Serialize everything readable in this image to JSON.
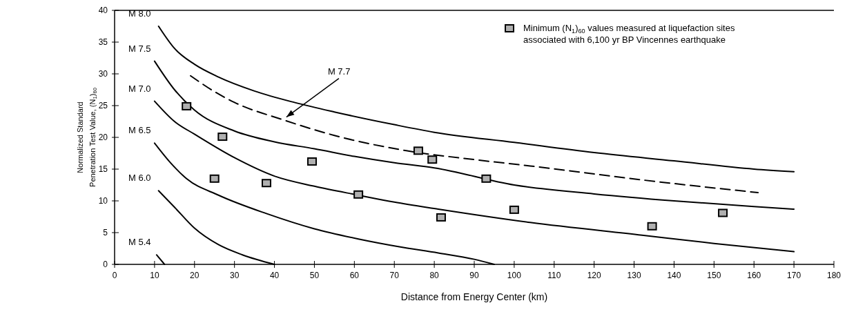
{
  "chart_data": {
    "type": "line",
    "xlabel": "Distance from Energy Center (km)",
    "ylabel": "Normalized Standard Penetration Test Value, (N$_{1}$)$_{60}$",
    "xlim": [
      0,
      180
    ],
    "xticks": [
      0,
      10,
      20,
      30,
      40,
      50,
      60,
      70,
      80,
      90,
      100,
      110,
      120,
      130,
      140,
      150,
      160,
      170,
      180
    ],
    "ylim": [
      0,
      40
    ],
    "yticks": [
      0,
      5,
      10,
      15,
      20,
      25,
      30,
      35,
      40
    ],
    "grid": false,
    "legend": "top right",
    "annotations": [
      {
        "text": "M 7.7",
        "x": 43,
        "y": 23.2
      }
    ],
    "series": [
      {
        "name": "M 8.0",
        "color": "#000000",
        "line_style": "solid",
        "x": [
          11,
          15,
          20,
          26,
          35,
          45,
          55,
          70,
          80,
          100,
          120,
          140,
          160,
          170
        ],
        "values": [
          37.5,
          34,
          31.5,
          29.5,
          27.3,
          25.5,
          24,
          22,
          20.8,
          19.2,
          17.6,
          16.3,
          15,
          14.6
        ]
      },
      {
        "name": "M 7.5",
        "color": "#000000",
        "line_style": "solid",
        "x": [
          10,
          15,
          20,
          30,
          40,
          50,
          60,
          70,
          80,
          100,
          120,
          140,
          160,
          170
        ],
        "values": [
          32,
          27.5,
          24.3,
          21,
          19.3,
          18.2,
          17,
          16,
          15.2,
          12.5,
          11.1,
          10,
          9.1,
          8.7
        ]
      },
      {
        "color": "#000000",
        "line_style": "dashed",
        "x": [
          19,
          25,
          30,
          42,
          55,
          73,
          90,
          104,
          132,
          161
        ],
        "values": [
          29.7,
          27.2,
          25.5,
          22.8,
          20.3,
          17.9,
          16.5,
          15.5,
          13.3,
          11.3
        ]
      },
      {
        "name": "M 7.0",
        "color": "#000000",
        "line_style": "solid",
        "x": [
          10,
          15,
          20,
          30,
          40,
          50,
          61,
          70,
          81,
          104,
          132,
          150,
          170
        ],
        "values": [
          25.7,
          22.5,
          20.5,
          16.8,
          13.9,
          12.3,
          10.9,
          9.8,
          8.7,
          6.6,
          4.6,
          3.3,
          2
        ]
      },
      {
        "name": "M 6.5",
        "color": "#000000",
        "line_style": "solid",
        "x": [
          10,
          14,
          18,
          26,
          38,
          50,
          61,
          71,
          81,
          90,
          95
        ],
        "values": [
          19.1,
          16,
          13.5,
          10.9,
          8,
          5.6,
          4,
          2.8,
          1.8,
          0.8,
          0
        ]
      },
      {
        "name": "M 6.0",
        "color": "#000000",
        "line_style": "solid",
        "x": [
          11,
          15,
          20,
          26,
          32,
          40
        ],
        "values": [
          11.6,
          9,
          5.7,
          3.1,
          1.5,
          0
        ]
      },
      {
        "name": "M 5.4",
        "color": "#000000",
        "line_style": "solid",
        "x": [
          10.5,
          12.5
        ],
        "values": [
          1.5,
          0
        ]
      },
      {
        "type": "scatter",
        "marker": "square",
        "color": "#b0b0b0",
        "name": "Minimum (N$_{1}$)$_{60}$ values measured at liquefaction sites associated with 6,100 yr BP Vincennes earthquake",
        "x": [
          18,
          27,
          25,
          38,
          49.4,
          61,
          76,
          79.5,
          93,
          81.7,
          100,
          134.5,
          152.2
        ],
        "values": [
          24.9,
          20.1,
          13.5,
          12.8,
          16.2,
          11,
          17.9,
          16.5,
          13.5,
          7.4,
          8.6,
          6,
          8.1
        ]
      }
    ]
  }
}
